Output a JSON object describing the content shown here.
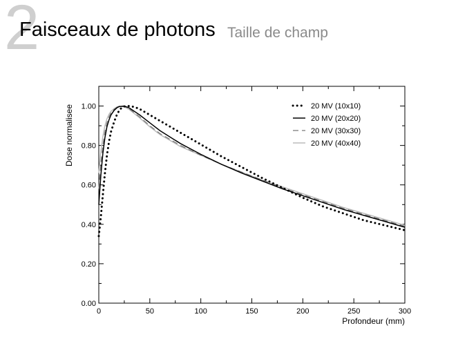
{
  "slide": {
    "number": "2",
    "title": "Faisceaux de photons",
    "subtitle": "Taille de champ"
  },
  "chart_data": {
    "type": "line",
    "title": "",
    "xlabel": "Profondeur (mm)",
    "ylabel": "Dose normalisee",
    "xlim": [
      0,
      300
    ],
    "ylim": [
      0,
      1.1
    ],
    "x_ticks": [
      "0",
      "50",
      "100",
      "150",
      "200",
      "250",
      "300"
    ],
    "y_ticks": [
      "0.00",
      "0.20",
      "0.40",
      "0.60",
      "0.80",
      "1.00"
    ],
    "grid": false,
    "legend_position": "top-right",
    "series": [
      {
        "name": "20 MV (10x10)",
        "style": "dotted",
        "color": "#000000",
        "x": [
          0,
          2,
          4,
          6,
          8,
          10,
          12,
          15,
          18,
          21,
          25,
          30,
          35,
          40,
          50,
          60,
          70,
          80,
          90,
          100,
          120,
          140,
          160,
          180,
          200,
          220,
          240,
          260,
          280,
          300
        ],
        "y": [
          0.34,
          0.44,
          0.55,
          0.66,
          0.75,
          0.82,
          0.87,
          0.92,
          0.96,
          0.985,
          0.998,
          1.0,
          0.995,
          0.985,
          0.955,
          0.925,
          0.895,
          0.865,
          0.835,
          0.805,
          0.745,
          0.69,
          0.635,
          0.585,
          0.535,
          0.49,
          0.455,
          0.42,
          0.395,
          0.37
        ]
      },
      {
        "name": "20 MV (20x20)",
        "style": "solid",
        "color": "#000000",
        "x": [
          0,
          2,
          4,
          6,
          8,
          10,
          12,
          15,
          18,
          20,
          25,
          30,
          40,
          50,
          60,
          80,
          100,
          120,
          140,
          160,
          180,
          200,
          220,
          240,
          260,
          280,
          300
        ],
        "y": [
          0.5,
          0.65,
          0.76,
          0.84,
          0.895,
          0.93,
          0.955,
          0.978,
          0.992,
          0.997,
          1.0,
          0.99,
          0.955,
          0.915,
          0.875,
          0.81,
          0.755,
          0.705,
          0.66,
          0.62,
          0.58,
          0.545,
          0.51,
          0.475,
          0.445,
          0.415,
          0.385
        ]
      },
      {
        "name": "20 MV (30x30)",
        "style": "dashed",
        "color": "#777777",
        "x": [
          0,
          2,
          4,
          6,
          8,
          10,
          12,
          15,
          18,
          20,
          25,
          30,
          40,
          50,
          60,
          80,
          100,
          120,
          140,
          160,
          180,
          200,
          220,
          240,
          260,
          280,
          300
        ],
        "y": [
          0.58,
          0.71,
          0.8,
          0.87,
          0.915,
          0.945,
          0.965,
          0.983,
          0.994,
          0.998,
          0.998,
          0.985,
          0.945,
          0.9,
          0.86,
          0.8,
          0.75,
          0.705,
          0.665,
          0.625,
          0.585,
          0.55,
          0.515,
          0.48,
          0.45,
          0.42,
          0.39
        ]
      },
      {
        "name": "20 MV (40x40)",
        "style": "solid",
        "color": "#bbbbbb",
        "x": [
          0,
          2,
          4,
          6,
          8,
          10,
          12,
          15,
          18,
          20,
          25,
          30,
          40,
          50,
          60,
          80,
          100,
          120,
          140,
          160,
          180,
          200,
          220,
          240,
          260,
          280,
          300
        ],
        "y": [
          0.66,
          0.77,
          0.845,
          0.9,
          0.935,
          0.958,
          0.973,
          0.987,
          0.996,
          0.999,
          0.996,
          0.982,
          0.94,
          0.895,
          0.855,
          0.795,
          0.75,
          0.705,
          0.665,
          0.625,
          0.59,
          0.555,
          0.52,
          0.485,
          0.455,
          0.425,
          0.395
        ]
      }
    ]
  }
}
